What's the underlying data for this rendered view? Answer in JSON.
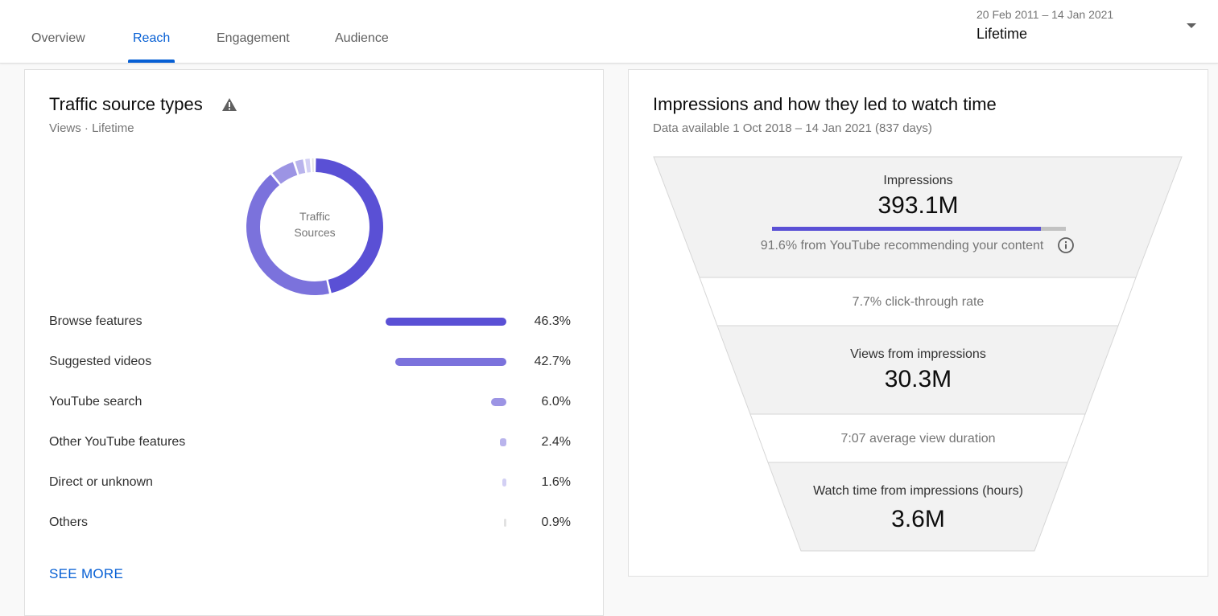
{
  "tabs": [
    {
      "label": "Overview",
      "active": false
    },
    {
      "label": "Reach",
      "active": true
    },
    {
      "label": "Engagement",
      "active": false
    },
    {
      "label": "Audience",
      "active": false
    }
  ],
  "date_picker": {
    "range": "20 Feb 2011 – 14 Jan 2021",
    "label": "Lifetime",
    "icon": "dropdown-arrow-icon"
  },
  "traffic": {
    "title": "Traffic source types",
    "warning_icon": "warning-icon",
    "subtitle": "Views · Lifetime",
    "donut_center_line1": "Traffic",
    "donut_center_line2": "Sources",
    "sources": [
      {
        "label": "Browse features",
        "percent": "46.3%",
        "value": 46.3,
        "color": "#5a50d5"
      },
      {
        "label": "Suggested videos",
        "percent": "42.7%",
        "value": 42.7,
        "color": "#7b72dc"
      },
      {
        "label": "YouTube search",
        "percent": "6.0%",
        "value": 6.0,
        "color": "#9c94e4"
      },
      {
        "label": "Other YouTube features",
        "percent": "2.4%",
        "value": 2.4,
        "color": "#b9b4ec"
      },
      {
        "label": "Direct or unknown",
        "percent": "1.6%",
        "value": 1.6,
        "color": "#d3d0f4"
      },
      {
        "label": "Others",
        "percent": "0.9%",
        "value": 0.9,
        "color": "#e2e2e2"
      }
    ],
    "see_more": "SEE MORE"
  },
  "impressions": {
    "title": "Impressions and how they led to watch time",
    "subtitle": "Data available 1 Oct 2018 – 14 Jan 2021 (837 days)",
    "impressions_label": "Impressions",
    "impressions_value": "393.1M",
    "recommend_fraction": 0.916,
    "recommend_text": "91.6% from YouTube recommending your content",
    "info_icon": "info-icon",
    "ctr_text": "7.7% click-through rate",
    "views_label": "Views from impressions",
    "views_value": "30.3M",
    "avd_text": "7:07 average view duration",
    "watch_label": "Watch time from impressions (hours)",
    "watch_value": "3.6M"
  }
}
